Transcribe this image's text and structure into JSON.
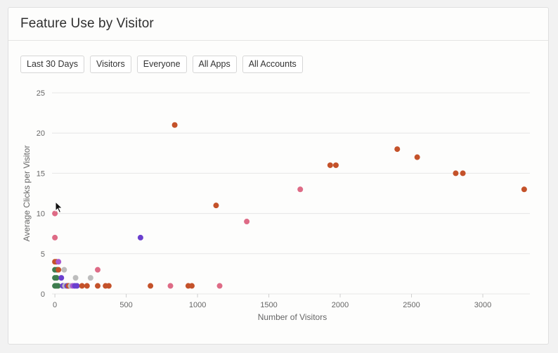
{
  "card": {
    "title": "Feature Use by Visitor"
  },
  "filters": [
    {
      "label": "Last 30 Days"
    },
    {
      "label": "Visitors"
    },
    {
      "label": "Everyone"
    },
    {
      "label": "All Apps"
    },
    {
      "label": "All Accounts"
    }
  ],
  "colors": {
    "orange": "#c4522a",
    "pink": "#de6b86",
    "purple": "#6a3fce",
    "green": "#3e7d4e",
    "gray": "#bdbdbd",
    "violet": "#a95ad0",
    "grid": "#e6e6e6",
    "axis_text": "#666666"
  },
  "chart_data": {
    "type": "scatter",
    "title": "",
    "xlabel": "Number of Visitors",
    "ylabel": "Average Clicks per Visitor",
    "xlim": [
      -40,
      3330
    ],
    "ylim": [
      0,
      25
    ],
    "x_ticks": [
      0,
      500,
      1000,
      1500,
      2000,
      2500,
      3000
    ],
    "y_ticks": [
      0,
      5,
      10,
      15,
      20,
      25
    ],
    "grid": "horizontal",
    "legend": "none",
    "points": [
      {
        "x": 840,
        "y": 21,
        "color": "orange"
      },
      {
        "x": 1130,
        "y": 11,
        "color": "orange"
      },
      {
        "x": 1930,
        "y": 16,
        "color": "orange"
      },
      {
        "x": 1970,
        "y": 16,
        "color": "orange"
      },
      {
        "x": 2400,
        "y": 18,
        "color": "orange"
      },
      {
        "x": 2540,
        "y": 17,
        "color": "orange"
      },
      {
        "x": 2810,
        "y": 15,
        "color": "orange"
      },
      {
        "x": 2860,
        "y": 15,
        "color": "orange"
      },
      {
        "x": 3290,
        "y": 13,
        "color": "orange"
      },
      {
        "x": 1720,
        "y": 13,
        "color": "pink"
      },
      {
        "x": 1345,
        "y": 9,
        "color": "pink"
      },
      {
        "x": 600,
        "y": 7,
        "color": "purple"
      },
      {
        "x": 0,
        "y": 10,
        "color": "pink"
      },
      {
        "x": 0,
        "y": 7,
        "color": "pink"
      },
      {
        "x": 0,
        "y": 4,
        "color": "orange"
      },
      {
        "x": 10,
        "y": 4,
        "color": "orange"
      },
      {
        "x": 25,
        "y": 4,
        "color": "violet"
      },
      {
        "x": 0,
        "y": 3,
        "color": "green"
      },
      {
        "x": 15,
        "y": 3,
        "color": "green"
      },
      {
        "x": 25,
        "y": 3,
        "color": "orange"
      },
      {
        "x": 65,
        "y": 3,
        "color": "gray"
      },
      {
        "x": 300,
        "y": 3,
        "color": "pink"
      },
      {
        "x": 0,
        "y": 2,
        "color": "green"
      },
      {
        "x": 12,
        "y": 2,
        "color": "green"
      },
      {
        "x": 45,
        "y": 2,
        "color": "purple"
      },
      {
        "x": 145,
        "y": 2,
        "color": "gray"
      },
      {
        "x": 250,
        "y": 2,
        "color": "gray"
      },
      {
        "x": 0,
        "y": 1,
        "color": "green"
      },
      {
        "x": 10,
        "y": 1,
        "color": "green"
      },
      {
        "x": 22,
        "y": 1,
        "color": "green"
      },
      {
        "x": 55,
        "y": 1,
        "color": "purple"
      },
      {
        "x": 70,
        "y": 1,
        "color": "gray"
      },
      {
        "x": 85,
        "y": 1,
        "color": "purple"
      },
      {
        "x": 95,
        "y": 1,
        "color": "orange"
      },
      {
        "x": 110,
        "y": 1,
        "color": "gray"
      },
      {
        "x": 125,
        "y": 1,
        "color": "violet"
      },
      {
        "x": 140,
        "y": 1,
        "color": "purple"
      },
      {
        "x": 155,
        "y": 1,
        "color": "purple"
      },
      {
        "x": 190,
        "y": 1,
        "color": "orange"
      },
      {
        "x": 225,
        "y": 1,
        "color": "orange"
      },
      {
        "x": 300,
        "y": 1,
        "color": "orange"
      },
      {
        "x": 355,
        "y": 1,
        "color": "orange"
      },
      {
        "x": 378,
        "y": 1,
        "color": "orange"
      },
      {
        "x": 670,
        "y": 1,
        "color": "orange"
      },
      {
        "x": 810,
        "y": 1,
        "color": "pink"
      },
      {
        "x": 935,
        "y": 1,
        "color": "orange"
      },
      {
        "x": 960,
        "y": 1,
        "color": "orange"
      },
      {
        "x": 1155,
        "y": 1,
        "color": "pink"
      }
    ]
  }
}
